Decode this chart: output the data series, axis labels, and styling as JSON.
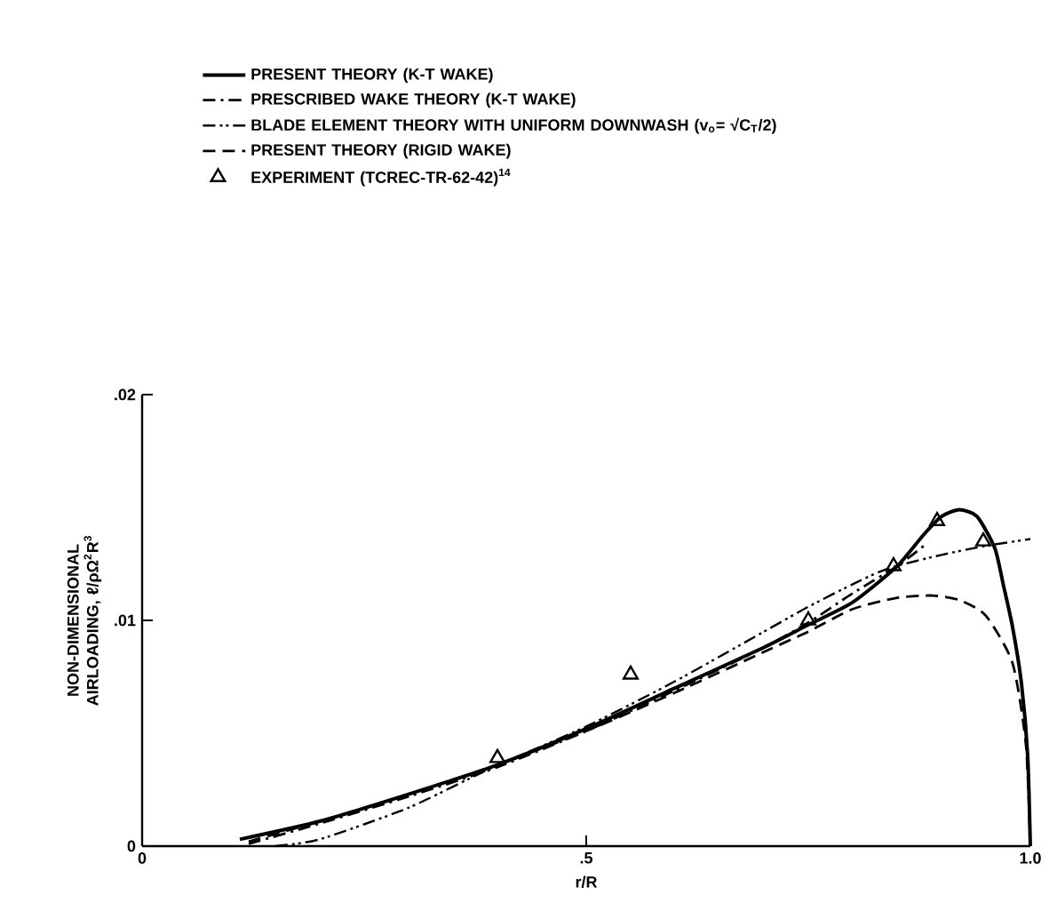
{
  "chart_data": {
    "type": "line",
    "xlabel": "r/R",
    "ylabel": "NON-DIMENSIONAL AIRLOADING, ℓ/ρΩ$^{2}$R$^{3}$",
    "xlim": [
      0,
      1.0
    ],
    "ylim": [
      0,
      0.02
    ],
    "xticks": [
      0,
      {
        "value": 0.5,
        "label": ".5"
      },
      {
        "value": 1.0,
        "label": "1.0"
      }
    ],
    "yticks": [
      0,
      {
        "value": 0.01,
        "label": ".01"
      },
      {
        "value": 0.02,
        "label": ".02"
      }
    ],
    "grid": false,
    "legend": "top",
    "series": [
      {
        "name": "PRESENT THEORY (K-T WAKE)",
        "color": "#000000",
        "line_style": "solid",
        "x": [
          0.11,
          0.2,
          0.3,
          0.4,
          0.5,
          0.6,
          0.7,
          0.75,
          0.8,
          0.85,
          0.88,
          0.9,
          0.92,
          0.94,
          0.96,
          0.97,
          0.98,
          0.99,
          0.997,
          1.0
        ],
        "values": [
          0.0003,
          0.0011,
          0.0023,
          0.0036,
          0.0052,
          0.007,
          0.0088,
          0.0098,
          0.0108,
          0.0124,
          0.0138,
          0.0146,
          0.0149,
          0.0146,
          0.0132,
          0.0115,
          0.0097,
          0.0072,
          0.004,
          0
        ]
      },
      {
        "name": "PRESCRIBED WAKE THEORY (K-T WAKE)",
        "color": "#000000",
        "line_style": "dashdot",
        "x": [
          0.12,
          0.2,
          0.3,
          0.4,
          0.5,
          0.6,
          0.7,
          0.75,
          0.8,
          0.85,
          0.88
        ],
        "values": [
          0.0001,
          0.001,
          0.0022,
          0.0035,
          0.0051,
          0.0069,
          0.0088,
          0.0099,
          0.0112,
          0.0124,
          0.0133
        ]
      },
      {
        "name": "BLADE ELEMENT THEORY WITH UNIFORM DOWNWASH (v$_{o}$= √C$_{T}$/2)",
        "color": "#000000",
        "line_style": "dashdotdot",
        "x": [
          0.15,
          0.2,
          0.3,
          0.39,
          0.5,
          0.6,
          0.7,
          0.75,
          0.8,
          0.84,
          0.9,
          0.95,
          1.0
        ],
        "values": [
          0,
          0.0003,
          0.0017,
          0.0034,
          0.0053,
          0.0073,
          0.0095,
          0.0106,
          0.0116,
          0.0123,
          0.0129,
          0.0133,
          0.0136
        ]
      },
      {
        "name": "PRESENT THEORY (RIGID WAKE)",
        "color": "#000000",
        "line_style": "dashed",
        "x": [
          0.12,
          0.2,
          0.3,
          0.4,
          0.5,
          0.6,
          0.7,
          0.75,
          0.8,
          0.85,
          0.89,
          0.92,
          0.95,
          0.98,
          0.995,
          1.0
        ],
        "values": [
          0.0002,
          0.0011,
          0.0023,
          0.0036,
          0.0051,
          0.0068,
          0.0086,
          0.0095,
          0.0105,
          0.011,
          0.0111,
          0.0109,
          0.0102,
          0.0081,
          0.0045,
          0
        ]
      },
      {
        "name": "EXPERIMENT (TCREC-TR-62-42)$^{14}$",
        "color": "#000000",
        "type": "scatter",
        "marker": "triangle",
        "x": [
          0.4,
          0.55,
          0.75,
          0.846,
          0.895,
          0.947
        ],
        "values": [
          0.0039,
          0.0076,
          0.01,
          0.0124,
          0.0144,
          0.0135
        ]
      }
    ]
  }
}
